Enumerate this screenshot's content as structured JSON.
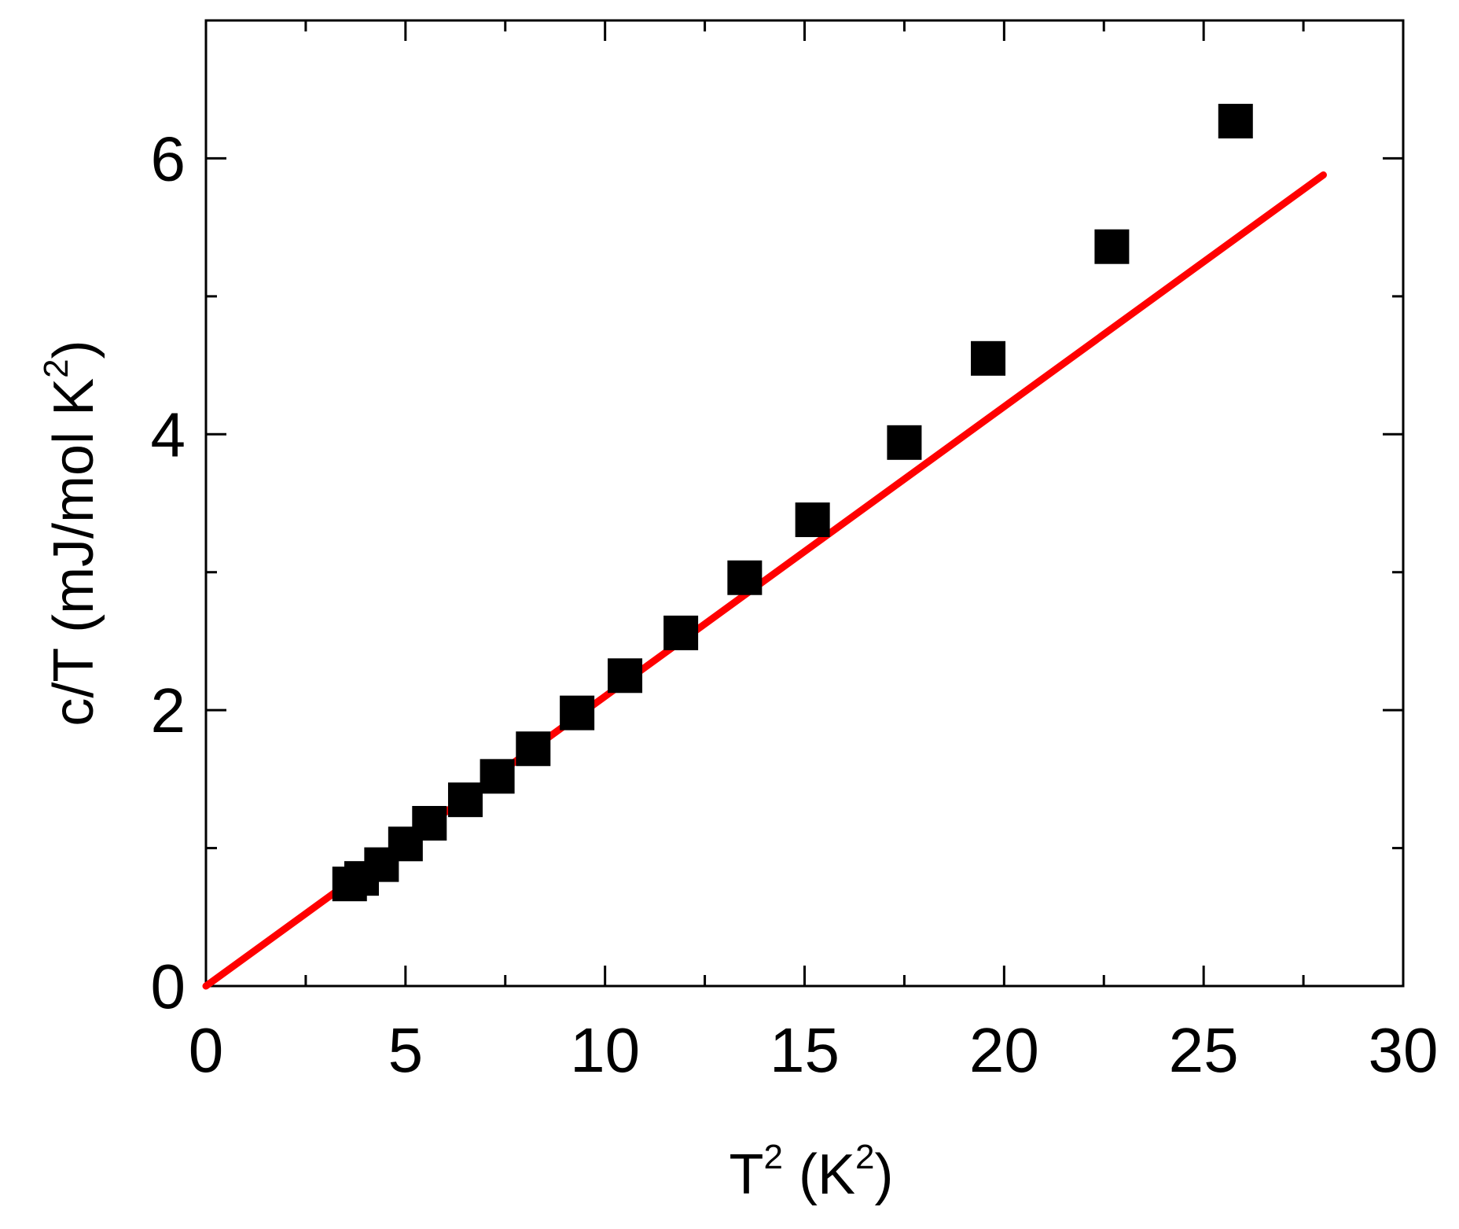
{
  "chart_data": {
    "type": "scatter",
    "title": "",
    "xlabel": {
      "base": "T",
      "sup": "2",
      "unit_open": " (K",
      "unit_sup": "2",
      "unit_close": ")"
    },
    "ylabel": {
      "text": "c/T (mJ/mol K",
      "sup": "2",
      "close": ")"
    },
    "xlim": [
      0,
      30
    ],
    "ylim": [
      0,
      6.0
    ],
    "y_top": 7.0,
    "x_ticks_major": [
      0,
      5,
      10,
      15,
      20,
      25,
      30
    ],
    "x_tick_labels": [
      "0",
      "5",
      "10",
      "15",
      "20",
      "25",
      "30"
    ],
    "x_ticks_minor": [
      2.5,
      7.5,
      12.5,
      17.5,
      22.5,
      27.5
    ],
    "y_ticks_major": [
      0,
      2,
      4,
      6
    ],
    "y_tick_labels": [
      "0",
      "2",
      "4",
      "6"
    ],
    "y_ticks_minor": [
      1,
      3,
      5
    ],
    "grid": false,
    "legend": "none",
    "series": [
      {
        "kind": "scatter",
        "marker": "square",
        "color": "#000000",
        "x": [
          3.6,
          3.9,
          4.4,
          5.0,
          5.6,
          6.5,
          7.3,
          8.2,
          9.3,
          10.5,
          11.9,
          13.5,
          15.2,
          17.5,
          19.6,
          22.7,
          25.8
        ],
        "y": [
          0.74,
          0.78,
          0.88,
          1.03,
          1.18,
          1.35,
          1.52,
          1.72,
          1.98,
          2.25,
          2.56,
          2.96,
          3.38,
          3.94,
          4.55,
          5.36,
          6.27
        ]
      },
      {
        "kind": "line",
        "color": "#ff0000",
        "x": [
          0,
          28
        ],
        "y": [
          0,
          5.88
        ]
      }
    ]
  }
}
